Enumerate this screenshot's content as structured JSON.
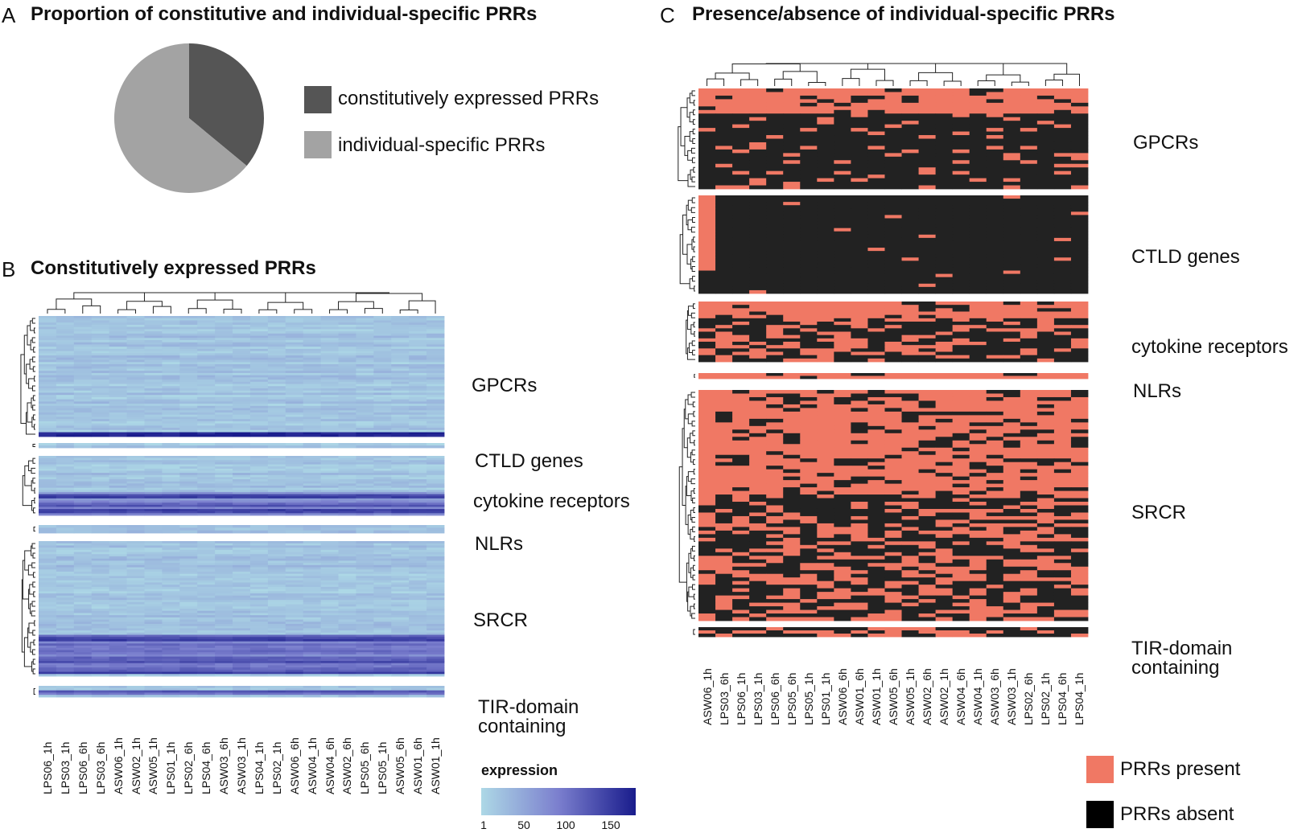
{
  "panel_a": {
    "letter": "A",
    "title": "Proportion of constitutive and individual-specific PRRs",
    "legend": [
      {
        "label": "constitutively expressed PRRs",
        "color": "#555555"
      },
      {
        "label": "individual-specific PRRs",
        "color": "#a3a3a3"
      }
    ]
  },
  "panel_b": {
    "letter": "B",
    "title": "Constitutively expressed PRRs",
    "colorbar": {
      "title": "expression",
      "ticks": [
        "1",
        "50",
        "100",
        "150"
      ]
    }
  },
  "panel_c": {
    "letter": "C",
    "title": "Presence/absence of individual-specific PRRs",
    "legend": [
      {
        "label": "PRRs present",
        "color": "#f07864"
      },
      {
        "label": "PRRs absent",
        "color": "#000000"
      }
    ]
  },
  "chart_data": [
    {
      "type": "pie",
      "title": "Proportion of constitutive and individual-specific PRRs",
      "categories": [
        "constitutively expressed PRRs",
        "individual-specific PRRs"
      ],
      "values": [
        36,
        64
      ],
      "colors": [
        "#555555",
        "#a3a3a3"
      ]
    },
    {
      "type": "heatmap",
      "title": "Constitutively expressed PRRs",
      "legend_title": "expression",
      "value_range": [
        1,
        175
      ],
      "colorbar_ticks": [
        1,
        50,
        100,
        150
      ],
      "columns": [
        "LPS06_1h",
        "LPS03_1h",
        "LPS06_6h",
        "LPS03_6h",
        "ASW06_1h",
        "ASW02_1h",
        "ASW05_1h",
        "LPS01_1h",
        "LPS02_6h",
        "LPS04_6h",
        "ASW03_6h",
        "ASW03_1h",
        "LPS04_1h",
        "LPS02_1h",
        "ASW06_6h",
        "ASW04_1h",
        "ASW04_6h",
        "ASW02_6h",
        "LPS05_6h",
        "LPS05_1h",
        "ASW05_6h",
        "ASW01_6h",
        "ASW01_1h"
      ],
      "row_groups": [
        "GPCRs",
        "CTLD genes",
        "cytokine receptors",
        "NLRs",
        "SRCR",
        "TIR-domain\ncontaining"
      ]
    },
    {
      "type": "heatmap",
      "title": "Presence/absence of individual-specific PRRs",
      "columns": [
        "ASW06_1h",
        "LPS03_6h",
        "LPS06_1h",
        "LPS03_1h",
        "LPS06_6h",
        "LPS05_6h",
        "LPS05_1h",
        "LPS01_1h",
        "ASW06_6h",
        "ASW01_6h",
        "ASW01_1h",
        "ASW05_6h",
        "ASW05_1h",
        "ASW02_6h",
        "ASW02_1h",
        "ASW04_6h",
        "ASW04_1h",
        "ASW03_6h",
        "ASW03_1h",
        "LPS02_6h",
        "LPS02_1h",
        "LPS04_6h",
        "LPS04_1h"
      ],
      "row_groups": [
        "GPCRs",
        "CTLD genes",
        "cytokine receptors",
        "NLRs",
        "SRCR",
        "TIR-domain\ncontaining"
      ],
      "categories": [
        "PRRs present",
        "PRRs absent"
      ]
    }
  ]
}
